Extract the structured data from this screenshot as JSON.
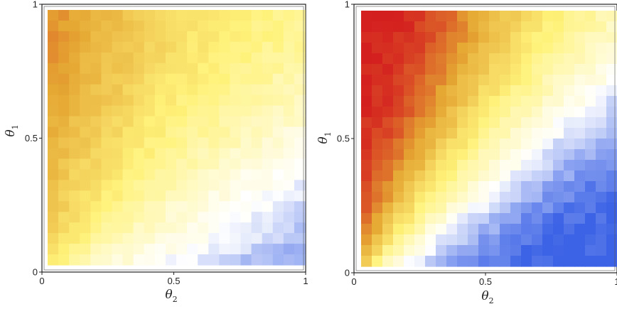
{
  "chart_data": [
    {
      "type": "heatmap",
      "xlabel": "θ2",
      "xlabel_base": "θ",
      "xlabel_sub": "2",
      "ylabel": "θ1",
      "ylabel_base": "θ",
      "ylabel_sub": "1",
      "xlim": [
        0,
        1
      ],
      "ylim": [
        0,
        1
      ],
      "x_ticks": [
        0,
        0.5,
        1
      ],
      "x_tick_labels": [
        "0",
        "0.5",
        "1"
      ],
      "y_ticks": [
        0,
        0.5,
        1
      ],
      "y_tick_labels": [
        "0",
        "0.5",
        "1"
      ],
      "grid_size": 24,
      "value_range": [
        -0.6,
        0.6
      ],
      "colormap": [
        "#3c63e6",
        "#ffffff",
        "#fff27a",
        "#e5a833",
        "#d41f1f"
      ],
      "pattern": "value increases with θ1 and decreases with θ2; warm (yellow/orange) in the top-left, blue in the bottom-right",
      "y_values": [
        0.02,
        0.1,
        0.2,
        0.3,
        0.4,
        0.5,
        0.6,
        0.7,
        0.8,
        0.9,
        0.98
      ],
      "x_values": [
        0.02,
        0.1,
        0.2,
        0.3,
        0.4,
        0.5,
        0.6,
        0.7,
        0.8,
        0.9,
        0.98
      ],
      "values": [
        [
          0.05,
          -0.1,
          -0.18,
          -0.22,
          -0.26,
          -0.3,
          -0.34,
          -0.38,
          -0.42,
          -0.45,
          -0.47
        ],
        [
          0.12,
          0.02,
          -0.08,
          -0.14,
          -0.2,
          -0.24,
          -0.28,
          -0.32,
          -0.36,
          -0.4,
          -0.42
        ],
        [
          0.16,
          0.08,
          0.0,
          -0.08,
          -0.14,
          -0.2,
          -0.24,
          -0.28,
          -0.32,
          -0.35,
          -0.38
        ],
        [
          0.2,
          0.13,
          0.06,
          -0.02,
          -0.08,
          -0.14,
          -0.19,
          -0.24,
          -0.27,
          -0.3,
          -0.33
        ],
        [
          0.22,
          0.16,
          0.1,
          0.03,
          -0.03,
          -0.08,
          -0.13,
          -0.18,
          -0.22,
          -0.25,
          -0.28
        ],
        [
          0.26,
          0.19,
          0.13,
          0.07,
          0.01,
          -0.04,
          -0.08,
          -0.12,
          -0.16,
          -0.2,
          -0.23
        ],
        [
          0.29,
          0.23,
          0.17,
          0.11,
          0.05,
          0.0,
          -0.04,
          -0.08,
          -0.11,
          -0.15,
          -0.18
        ],
        [
          0.31,
          0.26,
          0.2,
          0.14,
          0.08,
          0.03,
          -0.01,
          -0.04,
          -0.08,
          -0.11,
          -0.13
        ],
        [
          0.33,
          0.28,
          0.22,
          0.16,
          0.11,
          0.06,
          0.02,
          -0.01,
          -0.04,
          -0.07,
          -0.09
        ],
        [
          0.35,
          0.3,
          0.24,
          0.18,
          0.13,
          0.08,
          0.04,
          0.01,
          -0.02,
          -0.04,
          -0.06
        ],
        [
          0.36,
          0.31,
          0.25,
          0.19,
          0.14,
          0.09,
          0.05,
          0.02,
          -0.01,
          -0.03,
          -0.05
        ]
      ]
    },
    {
      "type": "heatmap",
      "xlabel": "θ2",
      "xlabel_base": "θ",
      "xlabel_sub": "2",
      "ylabel": "θ1",
      "ylabel_base": "θ",
      "ylabel_sub": "1",
      "xlim": [
        0,
        1
      ],
      "ylim": [
        0,
        1
      ],
      "x_ticks": [
        0,
        0.5,
        1
      ],
      "x_tick_labels": [
        "0",
        "0.5",
        "1"
      ],
      "y_ticks": [
        0,
        0.5,
        1
      ],
      "y_tick_labels": [
        "0",
        "0.5",
        "1"
      ],
      "grid_size": 24,
      "value_range": [
        -0.6,
        0.6
      ],
      "colormap": [
        "#3c63e6",
        "#ffffff",
        "#fff27a",
        "#e5a833",
        "#d41f1f"
      ],
      "pattern": "strong gradient: red in the top-left, white along the diagonal θ1≈θ2, deep blue in the bottom-right",
      "y_values": [
        0.02,
        0.1,
        0.2,
        0.3,
        0.4,
        0.5,
        0.6,
        0.7,
        0.8,
        0.9,
        0.98
      ],
      "x_values": [
        0.02,
        0.1,
        0.2,
        0.3,
        0.4,
        0.5,
        0.6,
        0.7,
        0.8,
        0.9,
        0.98
      ],
      "values": [
        [
          0.16,
          -0.12,
          -0.3,
          -0.42,
          -0.5,
          -0.55,
          -0.58,
          -0.6,
          -0.6,
          -0.6,
          -0.6
        ],
        [
          0.34,
          0.06,
          -0.16,
          -0.32,
          -0.42,
          -0.5,
          -0.55,
          -0.58,
          -0.6,
          -0.6,
          -0.6
        ],
        [
          0.44,
          0.24,
          0.02,
          -0.16,
          -0.3,
          -0.4,
          -0.48,
          -0.53,
          -0.57,
          -0.59,
          -0.6
        ],
        [
          0.5,
          0.36,
          0.16,
          -0.02,
          -0.17,
          -0.29,
          -0.38,
          -0.46,
          -0.51,
          -0.55,
          -0.57
        ],
        [
          0.54,
          0.44,
          0.27,
          0.1,
          -0.05,
          -0.18,
          -0.28,
          -0.37,
          -0.44,
          -0.49,
          -0.52
        ],
        [
          0.56,
          0.5,
          0.36,
          0.2,
          0.05,
          -0.08,
          -0.19,
          -0.28,
          -0.36,
          -0.42,
          -0.46
        ],
        [
          0.58,
          0.54,
          0.43,
          0.29,
          0.14,
          0.01,
          -0.1,
          -0.19,
          -0.27,
          -0.34,
          -0.39
        ],
        [
          0.59,
          0.56,
          0.48,
          0.36,
          0.22,
          0.09,
          -0.02,
          -0.11,
          -0.19,
          -0.26,
          -0.31
        ],
        [
          0.6,
          0.58,
          0.52,
          0.41,
          0.28,
          0.15,
          0.04,
          -0.05,
          -0.12,
          -0.18,
          -0.23
        ],
        [
          0.6,
          0.59,
          0.55,
          0.46,
          0.34,
          0.21,
          0.1,
          0.01,
          -0.06,
          -0.12,
          -0.17
        ],
        [
          0.6,
          0.6,
          0.56,
          0.48,
          0.37,
          0.25,
          0.14,
          0.04,
          -0.03,
          -0.08,
          -0.13
        ]
      ]
    }
  ]
}
